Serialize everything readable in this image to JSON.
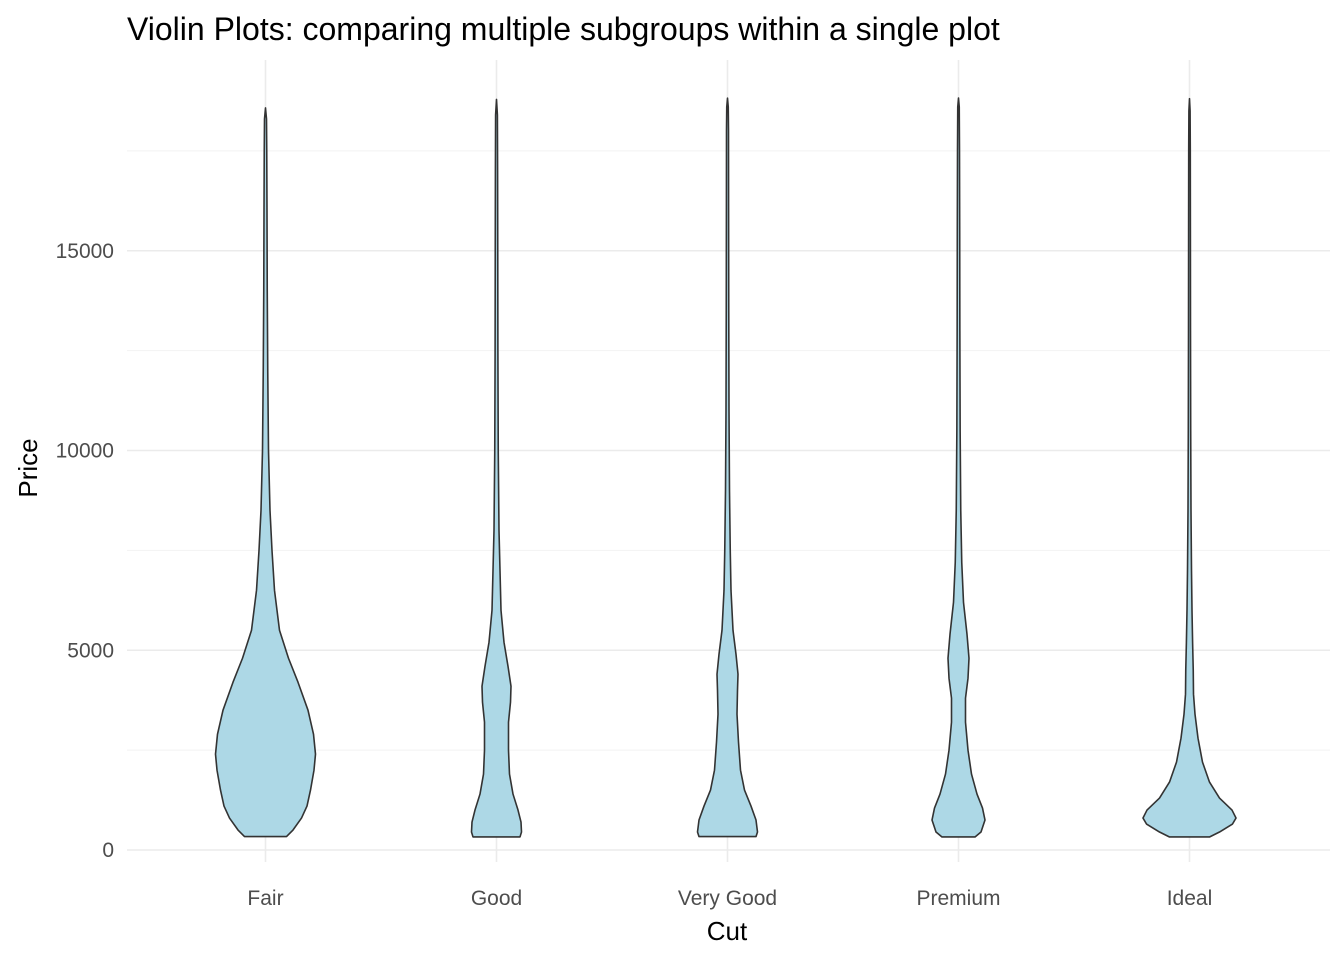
{
  "chart_data": {
    "type": "violin",
    "title": "Violin Plots: comparing multiple subgroups within a single plot",
    "xlabel": "Cut",
    "ylabel": "Price",
    "categories": [
      "Fair",
      "Good",
      "Very Good",
      "Premium",
      "Ideal"
    ],
    "ylim": [
      -400,
      19700
    ],
    "yticks": [
      0,
      5000,
      10000,
      15000
    ],
    "ytick_labels": [
      "0",
      "5000",
      "10000",
      "15000"
    ],
    "grid": true,
    "fill_color": "#add8e6",
    "outline_color": "#333333",
    "series": [
      {
        "category": "Fair",
        "min": 337,
        "max": 18574,
        "profile": [
          [
            337,
            0.42
          ],
          [
            500,
            0.55
          ],
          [
            800,
            0.72
          ],
          [
            1100,
            0.83
          ],
          [
            1500,
            0.9
          ],
          [
            2000,
            0.97
          ],
          [
            2400,
            1.0
          ],
          [
            2900,
            0.96
          ],
          [
            3500,
            0.85
          ],
          [
            4200,
            0.65
          ],
          [
            4800,
            0.46
          ],
          [
            5500,
            0.28
          ],
          [
            6500,
            0.18
          ],
          [
            7500,
            0.13
          ],
          [
            8500,
            0.09
          ],
          [
            10000,
            0.06
          ],
          [
            12000,
            0.045
          ],
          [
            14000,
            0.035
          ],
          [
            16000,
            0.03
          ],
          [
            17500,
            0.025
          ],
          [
            18300,
            0.02
          ],
          [
            18574,
            0
          ]
        ]
      },
      {
        "category": "Good",
        "min": 327,
        "max": 18788,
        "profile": [
          [
            327,
            0.47
          ],
          [
            450,
            0.5
          ],
          [
            700,
            0.49
          ],
          [
            1000,
            0.43
          ],
          [
            1400,
            0.33
          ],
          [
            1900,
            0.26
          ],
          [
            2500,
            0.24
          ],
          [
            3200,
            0.24
          ],
          [
            3700,
            0.28
          ],
          [
            4100,
            0.29
          ],
          [
            4600,
            0.23
          ],
          [
            5200,
            0.15
          ],
          [
            6000,
            0.09
          ],
          [
            7000,
            0.07
          ],
          [
            8000,
            0.05
          ],
          [
            10000,
            0.035
          ],
          [
            12500,
            0.028
          ],
          [
            15000,
            0.025
          ],
          [
            17000,
            0.022
          ],
          [
            18400,
            0.018
          ],
          [
            18788,
            0
          ]
        ]
      },
      {
        "category": "Very Good",
        "min": 336,
        "max": 18818,
        "profile": [
          [
            336,
            0.57
          ],
          [
            450,
            0.6
          ],
          [
            750,
            0.57
          ],
          [
            1100,
            0.47
          ],
          [
            1500,
            0.34
          ],
          [
            2000,
            0.26
          ],
          [
            2700,
            0.22
          ],
          [
            3400,
            0.19
          ],
          [
            4000,
            0.2
          ],
          [
            4400,
            0.21
          ],
          [
            4900,
            0.17
          ],
          [
            5500,
            0.11
          ],
          [
            6500,
            0.07
          ],
          [
            7500,
            0.055
          ],
          [
            9000,
            0.04
          ],
          [
            11000,
            0.03
          ],
          [
            13500,
            0.025
          ],
          [
            16000,
            0.022
          ],
          [
            18000,
            0.02
          ],
          [
            18600,
            0.015
          ],
          [
            18818,
            0
          ]
        ]
      },
      {
        "category": "Premium",
        "min": 326,
        "max": 18823,
        "profile": [
          [
            326,
            0.33
          ],
          [
            450,
            0.45
          ],
          [
            750,
            0.53
          ],
          [
            1050,
            0.48
          ],
          [
            1400,
            0.37
          ],
          [
            1900,
            0.26
          ],
          [
            2500,
            0.19
          ],
          [
            3200,
            0.14
          ],
          [
            3800,
            0.14
          ],
          [
            4300,
            0.19
          ],
          [
            4800,
            0.21
          ],
          [
            5400,
            0.17
          ],
          [
            6200,
            0.1
          ],
          [
            7200,
            0.065
          ],
          [
            8500,
            0.045
          ],
          [
            10500,
            0.033
          ],
          [
            13000,
            0.027
          ],
          [
            15500,
            0.024
          ],
          [
            17500,
            0.02
          ],
          [
            18600,
            0.015
          ],
          [
            18823,
            0
          ]
        ]
      },
      {
        "category": "Ideal",
        "min": 326,
        "max": 18806,
        "profile": [
          [
            326,
            0.4
          ],
          [
            450,
            0.6
          ],
          [
            650,
            0.86
          ],
          [
            800,
            0.93
          ],
          [
            1000,
            0.85
          ],
          [
            1300,
            0.6
          ],
          [
            1700,
            0.4
          ],
          [
            2200,
            0.26
          ],
          [
            2800,
            0.17
          ],
          [
            3400,
            0.11
          ],
          [
            3900,
            0.08
          ],
          [
            4500,
            0.075
          ],
          [
            5200,
            0.062
          ],
          [
            6000,
            0.05
          ],
          [
            7000,
            0.04
          ],
          [
            8500,
            0.03
          ],
          [
            10500,
            0.024
          ],
          [
            13000,
            0.02
          ],
          [
            15500,
            0.018
          ],
          [
            17500,
            0.016
          ],
          [
            18500,
            0.012
          ],
          [
            18806,
            0
          ]
        ]
      }
    ]
  }
}
